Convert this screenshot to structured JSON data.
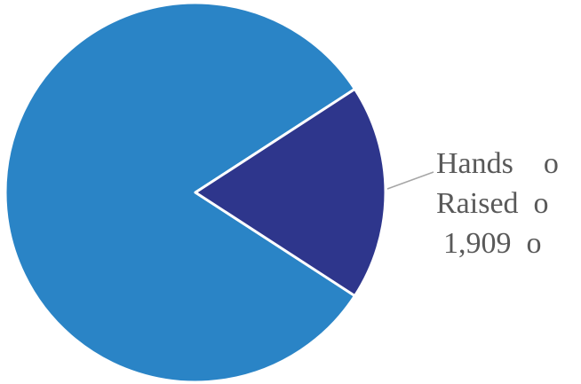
{
  "chart_data": {
    "type": "pie",
    "slices": [
      {
        "label": "",
        "value": 8.5,
        "color": "#2A84C6"
      },
      {
        "label": "Hands Raised",
        "value": 1.909,
        "color": "#2E368C"
      }
    ],
    "slice_label": {
      "lines": [
        "Hands    o",
        "Raised  o",
        "1,909  o"
      ]
    },
    "leader_line_color": "#A6A6A6",
    "slice_border_color": "#FFFFFF"
  }
}
